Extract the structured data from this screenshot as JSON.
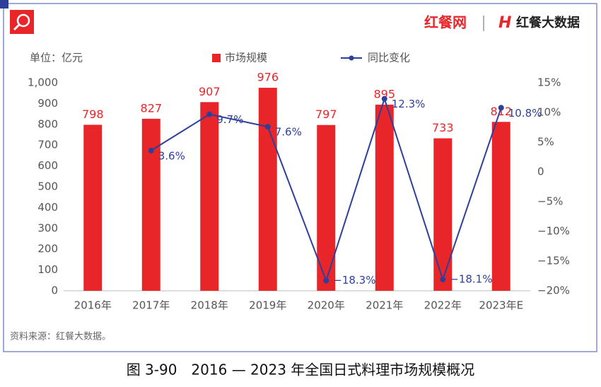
{
  "logo": [
    "红餐网",
    "红餐大数据"
  ],
  "caption": "图 3-90　2016 — 2023 年全国日式料理市场规模概况",
  "chart_data": {
    "type": "bar-line",
    "unit": "单位：亿元",
    "source": "资料来源：红餐大数据。",
    "categories": [
      "2016年",
      "2017年",
      "2018年",
      "2019年",
      "2020年",
      "2021年",
      "2022年",
      "2023年E"
    ],
    "series": [
      {
        "name": "市场规模",
        "type": "bar",
        "color": "#e8262a",
        "values": [
          798,
          827,
          907,
          976,
          797,
          895,
          733,
          812
        ]
      },
      {
        "name": "同比变化",
        "type": "line",
        "axis": "y2",
        "color": "#2e3f9a",
        "values": [
          null,
          3.6,
          9.7,
          7.6,
          -18.3,
          12.3,
          -18.1,
          10.8
        ],
        "value_labels": [
          null,
          "3.6%",
          "9.7%",
          "7.6%",
          "−18.3%",
          "12.3%",
          "−18.1%",
          "10.8%"
        ]
      }
    ],
    "ylim": [
      0,
      1000
    ],
    "yticks": [
      0,
      100,
      200,
      300,
      400,
      500,
      600,
      700,
      800,
      900,
      {
        "value": 1000,
        "label": "1,000"
      }
    ],
    "y2lim": [
      -20,
      15
    ],
    "y2ticks": [
      {
        "value": -20,
        "label": "−20%"
      },
      {
        "value": -15,
        "label": "−15%"
      },
      {
        "value": -10,
        "label": "−10%"
      },
      {
        "value": -5,
        "label": "−5%"
      },
      0,
      {
        "value": 5,
        "label": "5%"
      },
      {
        "value": 10,
        "label": "10%"
      },
      {
        "value": 15,
        "label": "15%"
      }
    ],
    "grid": false
  }
}
